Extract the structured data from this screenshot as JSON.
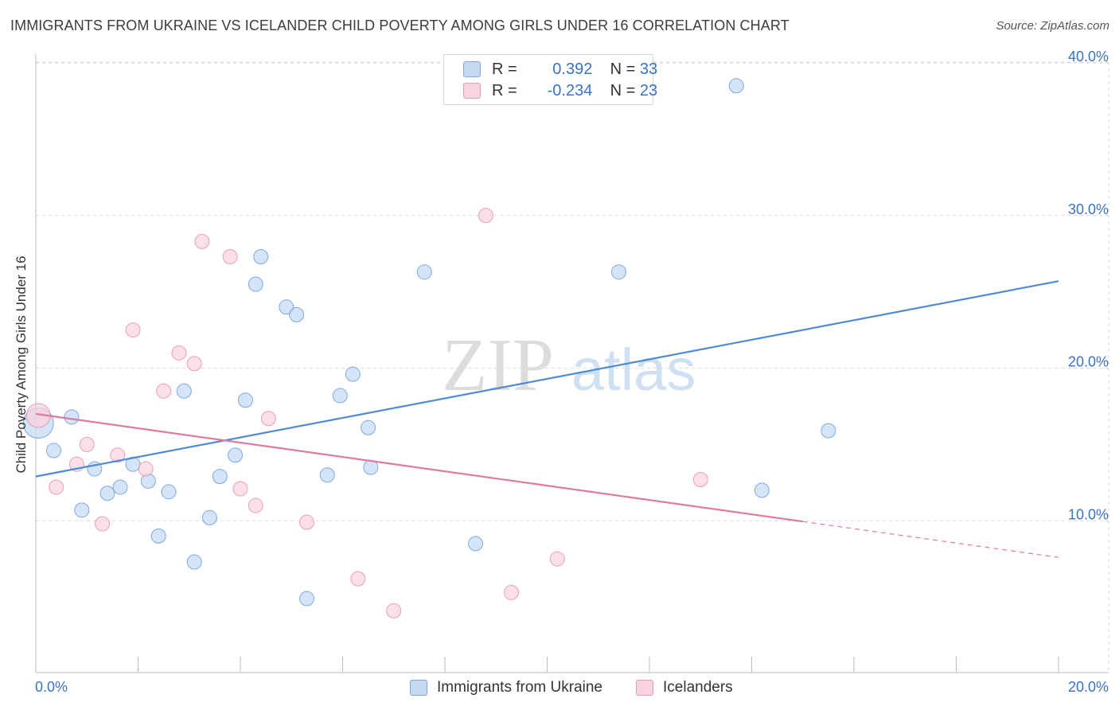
{
  "title": "IMMIGRANTS FROM UKRAINE VS ICELANDER CHILD POVERTY AMONG GIRLS UNDER 16 CORRELATION CHART",
  "source": "Source: ZipAtlas.com",
  "watermark": {
    "part1": "ZIP",
    "part2": "atlas"
  },
  "legend": {
    "r_label": "R =",
    "n_label": "N =",
    "rows": [
      {
        "r": "0.392",
        "n": "33",
        "color": "#a9c8ef"
      },
      {
        "r": "-0.234",
        "n": "23",
        "color": "#f6bccb"
      }
    ]
  },
  "chart_data": {
    "type": "scatter",
    "title": "IMMIGRANTS FROM UKRAINE VS ICELANDER CHILD POVERTY AMONG GIRLS UNDER 16 CORRELATION CHART",
    "xlabel": "",
    "ylabel": "Child Poverty Among Girls Under 16",
    "xlim": [
      0,
      20
    ],
    "ylim": [
      0,
      40
    ],
    "x_tick_labels": [
      "0.0%",
      "20.0%"
    ],
    "y_ticks": [
      10,
      20,
      30,
      40
    ],
    "y_tick_labels": [
      "10.0%",
      "20.0%",
      "30.0%",
      "40.0%"
    ],
    "grid": true,
    "legend_position": "bottom",
    "series": [
      {
        "name": "Immigrants from Ukraine",
        "color": "#4f8ad6",
        "fill": "#c5d9f3",
        "r": 0.392,
        "n": 33,
        "points": [
          [
            0.05,
            16.4
          ],
          [
            0.35,
            14.6
          ],
          [
            0.7,
            16.8
          ],
          [
            0.9,
            10.7
          ],
          [
            1.15,
            13.4
          ],
          [
            1.4,
            11.8
          ],
          [
            1.65,
            12.2
          ],
          [
            1.9,
            13.7
          ],
          [
            2.2,
            12.6
          ],
          [
            2.4,
            9.0
          ],
          [
            2.6,
            11.9
          ],
          [
            2.9,
            18.5
          ],
          [
            3.1,
            7.3
          ],
          [
            3.4,
            10.2
          ],
          [
            3.6,
            12.9
          ],
          [
            3.9,
            14.3
          ],
          [
            4.1,
            17.9
          ],
          [
            4.4,
            27.3
          ],
          [
            4.3,
            25.5
          ],
          [
            4.9,
            24.0
          ],
          [
            5.1,
            23.5
          ],
          [
            5.3,
            4.9
          ],
          [
            5.7,
            13.0
          ],
          [
            5.95,
            18.2
          ],
          [
            6.2,
            19.6
          ],
          [
            6.5,
            16.1
          ],
          [
            6.55,
            13.5
          ],
          [
            7.6,
            26.3
          ],
          [
            11.4,
            26.3
          ],
          [
            8.6,
            8.5
          ],
          [
            13.7,
            38.5
          ],
          [
            14.2,
            12.0
          ],
          [
            15.5,
            15.9
          ]
        ]
      },
      {
        "name": "Icelanders",
        "color": "#e07aa0",
        "fill": "#f9d3de",
        "r": -0.234,
        "n": 23,
        "points": [
          [
            0.05,
            16.9
          ],
          [
            0.4,
            12.2
          ],
          [
            0.8,
            13.7
          ],
          [
            1.0,
            15.0
          ],
          [
            1.3,
            9.8
          ],
          [
            1.6,
            14.3
          ],
          [
            1.9,
            22.5
          ],
          [
            2.15,
            13.4
          ],
          [
            2.5,
            18.5
          ],
          [
            2.8,
            21.0
          ],
          [
            3.1,
            20.3
          ],
          [
            3.25,
            28.3
          ],
          [
            3.8,
            27.3
          ],
          [
            4.0,
            12.1
          ],
          [
            4.3,
            11.0
          ],
          [
            4.55,
            16.7
          ],
          [
            5.3,
            9.9
          ],
          [
            6.3,
            6.2
          ],
          [
            7.0,
            4.1
          ],
          [
            8.8,
            30.0
          ],
          [
            9.3,
            5.3
          ],
          [
            10.2,
            7.5
          ],
          [
            13.0,
            12.7
          ]
        ]
      }
    ],
    "trendlines": [
      {
        "series": "Immigrants from Ukraine",
        "from": [
          0,
          12.9
        ],
        "to": [
          20,
          25.7
        ],
        "dashed_from": null
      },
      {
        "series": "Icelanders",
        "from": [
          0,
          17.0
        ],
        "to": [
          20,
          7.6
        ],
        "dashed_from": 15.0
      }
    ]
  }
}
